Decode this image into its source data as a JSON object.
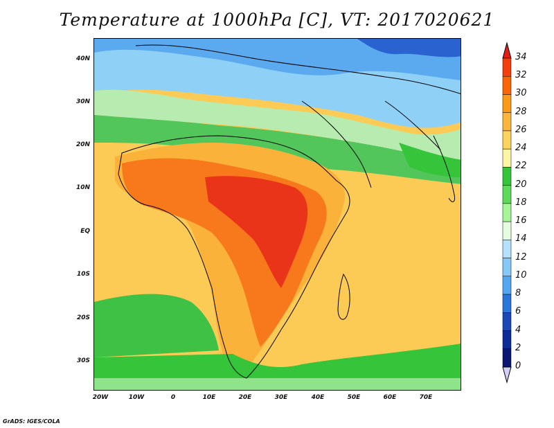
{
  "title": "Temperature at 1000hPa [C], VT: 2017020621",
  "credit": "GrADS: IGES/COLA",
  "map": {
    "lat_ticks": [
      "40N",
      "30N",
      "20N",
      "10N",
      "EQ",
      "10S",
      "20S",
      "30S"
    ],
    "lon_ticks": [
      "20W",
      "10W",
      "0",
      "10E",
      "20E",
      "30E",
      "40E",
      "50E",
      "60E",
      "70E"
    ]
  },
  "colorbar": {
    "levels": [
      "34",
      "32",
      "30",
      "28",
      "26",
      "24",
      "22",
      "20",
      "18",
      "16",
      "14",
      "12",
      "10",
      "8",
      "6",
      "4",
      "2",
      "0"
    ],
    "colors": [
      "#e51e14",
      "#f33f0b",
      "#fa6607",
      "#fb9a17",
      "#fbb43c",
      "#fcd35f",
      "#fdf5a6",
      "#36c43b",
      "#5ed95c",
      "#a6f597",
      "#e4fdde",
      "#b4e2fc",
      "#86c9f9",
      "#53a6f0",
      "#2a76d9",
      "#1a49b6",
      "#0d2d96",
      "#0a1670",
      "#d4d0f7"
    ]
  }
}
